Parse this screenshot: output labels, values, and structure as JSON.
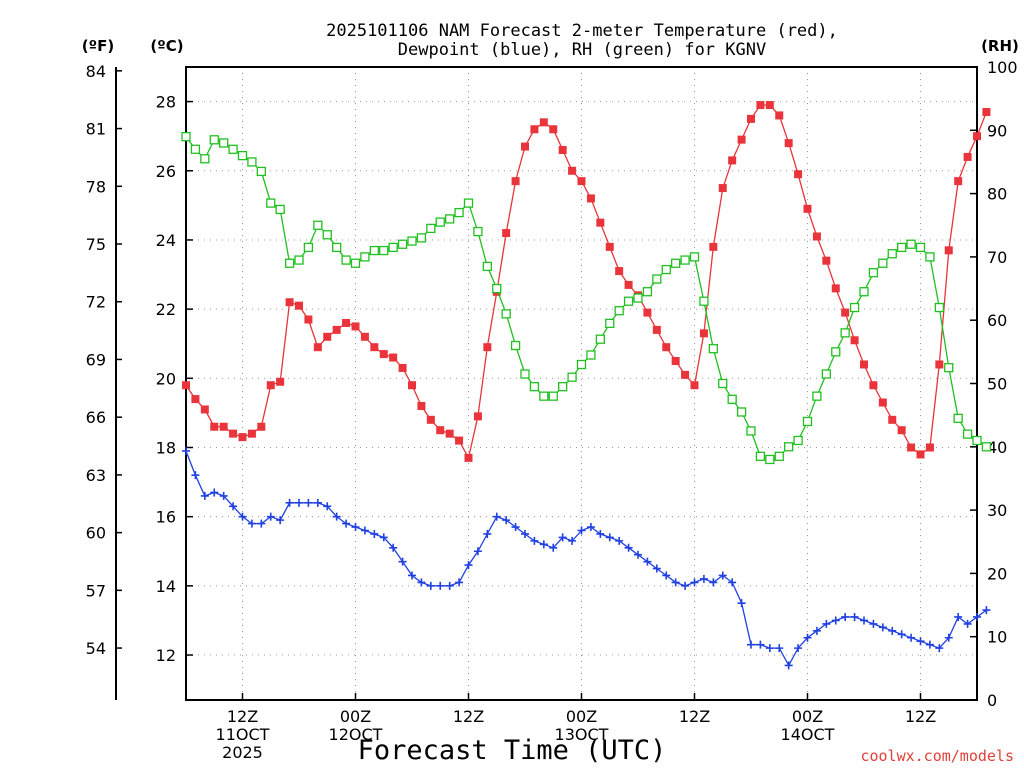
{
  "chart_data": {
    "type": "line",
    "title": [
      "2025101106 NAM Forecast 2-meter Temperature (red),",
      "Dewpoint (blue), RH (green) for KGNV"
    ],
    "xlabel": "Forecast Time (UTC)",
    "credit": "coolwx.com/models",
    "units": {
      "fahrenheit": "(ºF)",
      "celsius": "(ºC)",
      "rh": "(RH)"
    },
    "x_hours": {
      "start": 0,
      "end": 84,
      "step": 1,
      "note_start": "2025-10-11 06Z"
    },
    "x_ticks": [
      {
        "hour": 6,
        "lines": [
          "12Z",
          "11OCT",
          "2025"
        ]
      },
      {
        "hour": 18,
        "lines": [
          "00Z",
          "12OCT"
        ]
      },
      {
        "hour": 30,
        "lines": [
          "12Z"
        ]
      },
      {
        "hour": 42,
        "lines": [
          "00Z",
          "13OCT"
        ]
      },
      {
        "hour": 54,
        "lines": [
          "12Z"
        ]
      },
      {
        "hour": 66,
        "lines": [
          "00Z",
          "14OCT"
        ]
      },
      {
        "hour": 78,
        "lines": [
          "12Z"
        ]
      }
    ],
    "celsius_axis": {
      "min": 10.7,
      "max": 29.0,
      "ticks": [
        "12",
        "14",
        "16",
        "18",
        "20",
        "22",
        "24",
        "26",
        "28"
      ]
    },
    "fahrenheit_axis": {
      "min": 51.3,
      "max": 84.2,
      "ticks": [
        "54",
        "57",
        "60",
        "63",
        "66",
        "69",
        "72",
        "75",
        "78",
        "81",
        "84"
      ]
    },
    "rh_axis": {
      "min": 0,
      "max": 100,
      "ticks": [
        "0",
        "10",
        "20",
        "30",
        "40",
        "50",
        "60",
        "70",
        "80",
        "90",
        "100"
      ]
    },
    "grid": true,
    "colors": {
      "temperature": "#e8343a",
      "dewpoint": "#2040e0",
      "rh": "#20c020",
      "grid": "#9a9a9a"
    },
    "series": [
      {
        "name": "Temperature (red)",
        "axis": "celsius",
        "marker": "filled-square",
        "values": [
          19.8,
          19.4,
          19.1,
          18.6,
          18.6,
          18.4,
          18.3,
          18.4,
          18.6,
          19.8,
          19.9,
          22.2,
          22.1,
          21.7,
          20.9,
          21.2,
          21.4,
          21.6,
          21.5,
          21.2,
          20.9,
          20.7,
          20.6,
          20.3,
          19.8,
          19.2,
          18.8,
          18.5,
          18.4,
          18.2,
          17.7,
          18.9,
          20.9,
          22.5,
          24.2,
          25.7,
          26.7,
          27.2,
          27.4,
          27.2,
          26.6,
          26.0,
          25.7,
          25.2,
          24.5,
          23.8,
          23.1,
          22.7,
          22.4,
          21.9,
          21.4,
          20.9,
          20.5,
          20.1,
          19.8,
          21.3,
          23.8,
          25.5,
          26.3,
          26.9,
          27.5,
          27.9,
          27.9,
          27.6,
          26.8,
          25.9,
          24.9,
          24.1,
          23.4,
          22.6,
          21.9,
          21.1,
          20.4,
          19.8,
          19.3,
          18.8,
          18.5,
          18.0,
          17.8,
          18.0,
          20.4,
          23.7,
          25.7,
          26.4,
          27.0,
          27.7
        ]
      },
      {
        "name": "Dewpoint (blue)",
        "axis": "celsius",
        "marker": "plus",
        "values": [
          17.9,
          17.2,
          16.6,
          16.7,
          16.6,
          16.3,
          16.0,
          15.8,
          15.8,
          16.0,
          15.9,
          16.4,
          16.4,
          16.4,
          16.4,
          16.3,
          16.0,
          15.8,
          15.7,
          15.6,
          15.5,
          15.4,
          15.1,
          14.7,
          14.3,
          14.1,
          14.0,
          14.0,
          14.0,
          14.1,
          14.6,
          15.0,
          15.5,
          16.0,
          15.9,
          15.7,
          15.5,
          15.3,
          15.2,
          15.1,
          15.4,
          15.3,
          15.6,
          15.7,
          15.5,
          15.4,
          15.3,
          15.1,
          14.9,
          14.7,
          14.5,
          14.3,
          14.1,
          14.0,
          14.1,
          14.2,
          14.1,
          14.3,
          14.1,
          13.5,
          12.3,
          12.3,
          12.2,
          12.2,
          11.7,
          12.2,
          12.5,
          12.7,
          12.9,
          13.0,
          13.1,
          13.1,
          13.0,
          12.9,
          12.8,
          12.7,
          12.6,
          12.5,
          12.4,
          12.3,
          12.2,
          12.5,
          13.1,
          12.9,
          13.1,
          13.3
        ]
      },
      {
        "name": "RH (green)",
        "axis": "rh",
        "marker": "open-square",
        "values": [
          89.0,
          87.0,
          85.5,
          88.5,
          88.0,
          87.0,
          86.0,
          85.0,
          83.5,
          78.5,
          77.5,
          69.0,
          69.5,
          71.5,
          75.0,
          73.5,
          71.5,
          69.5,
          69.0,
          70.0,
          71.0,
          71.0,
          71.5,
          72.0,
          72.5,
          73.0,
          74.5,
          75.5,
          76.0,
          77.0,
          78.5,
          74.0,
          68.5,
          65.0,
          61.0,
          56.0,
          51.5,
          49.5,
          48.0,
          48.0,
          49.5,
          51.0,
          53.0,
          54.5,
          57.0,
          59.5,
          61.5,
          63.0,
          63.5,
          64.5,
          66.5,
          68.0,
          69.0,
          69.5,
          70.0,
          63.0,
          55.5,
          50.0,
          47.5,
          45.5,
          42.5,
          38.5,
          38.0,
          38.5,
          40.0,
          41.0,
          44.0,
          48.0,
          51.5,
          55.0,
          58.0,
          62.0,
          64.5,
          67.5,
          69.0,
          70.5,
          71.5,
          72.0,
          71.5,
          70.0,
          62.0,
          52.5,
          44.5,
          42.0,
          41.0,
          40.0
        ]
      }
    ]
  }
}
